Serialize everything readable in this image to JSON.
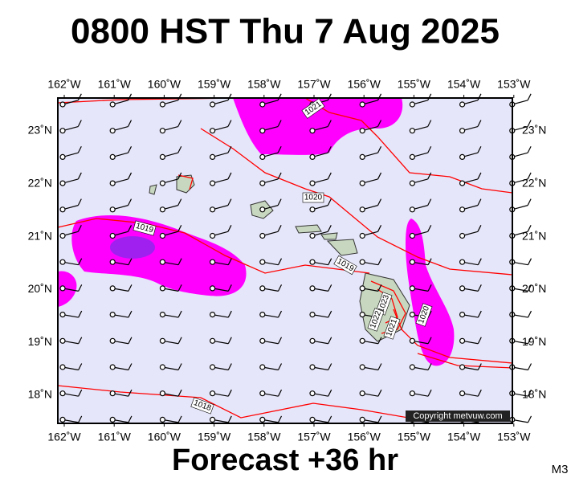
{
  "title": "0800 HST Thu 7 Aug 2025",
  "subtitle": "Forecast +36 hr",
  "code": "M3",
  "copyright": "Copyright metvuw.com",
  "longitudes": [
    "162˚W",
    "161˚W",
    "160˚W",
    "159˚W",
    "158˚W",
    "157˚W",
    "156˚W",
    "155˚W",
    "154˚W",
    "153˚W"
  ],
  "latitudes": [
    "23˚N",
    "22˚N",
    "21˚N",
    "20˚N",
    "19˚N",
    "18˚N"
  ],
  "isobar_labels": [
    "1021",
    "1020",
    "1019",
    "1019",
    "1018",
    "1020",
    "1023",
    "1022",
    "1021"
  ]
}
